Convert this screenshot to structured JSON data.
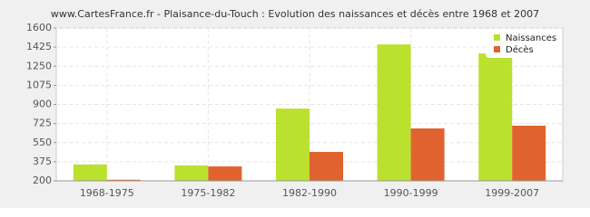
{
  "chart_data": {
    "type": "bar",
    "title": "www.CartesFrance.fr - Plaisance-du-Touch : Evolution des naissances et décès entre 1968 et 2007",
    "categories": [
      "1968-1975",
      "1975-1982",
      "1982-1990",
      "1990-1999",
      "1999-2007"
    ],
    "series": [
      {
        "name": "Naissances",
        "color": "#bbe12f",
        "values": [
          350,
          341,
          862,
          1450,
          1367
        ]
      },
      {
        "name": "Décès",
        "color": "#e0632f",
        "values": [
          210,
          332,
          465,
          680,
          705
        ]
      }
    ],
    "ylim": [
      200,
      1600
    ],
    "yticks": [
      200,
      375,
      550,
      725,
      900,
      1075,
      1250,
      1425,
      1600
    ],
    "grid": true,
    "legend": "top-right"
  }
}
